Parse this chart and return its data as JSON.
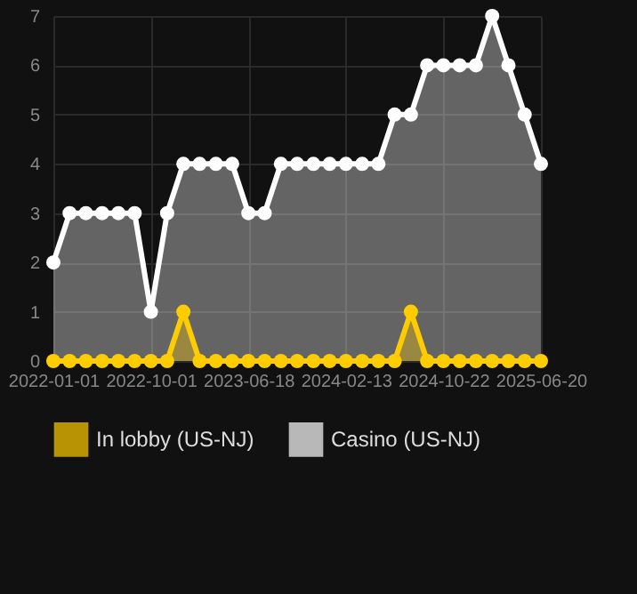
{
  "chart_data": {
    "type": "area",
    "categories": [
      "2022-01-01",
      null,
      null,
      null,
      null,
      null,
      "2022-10-01",
      null,
      null,
      null,
      null,
      null,
      "2023-06-18",
      null,
      null,
      null,
      null,
      null,
      "2024-02-13",
      null,
      null,
      null,
      null,
      null,
      "2024-10-22",
      null,
      null,
      null,
      null,
      null,
      "2025-06-20"
    ],
    "series": [
      {
        "name": "In lobby (US-NJ)",
        "color": "#ffcc00",
        "values": [
          0,
          0,
          0,
          0,
          0,
          0,
          0,
          0,
          1,
          0,
          0,
          0,
          0,
          0,
          0,
          0,
          0,
          0,
          0,
          0,
          0,
          0,
          1,
          0,
          0,
          0,
          0,
          0,
          0,
          0,
          0
        ]
      },
      {
        "name": "Casino (US-NJ)",
        "color": "#ffffff",
        "values": [
          2,
          3,
          3,
          3,
          3,
          3,
          1,
          3,
          4,
          4,
          4,
          4,
          3,
          3,
          4,
          4,
          4,
          4,
          4,
          4,
          4,
          5,
          5,
          6,
          6,
          6,
          6,
          7,
          6,
          5,
          4
        ]
      }
    ],
    "ylim": [
      0,
      7
    ],
    "yticks": [
      0,
      1,
      2,
      3,
      4,
      5,
      6,
      7
    ],
    "grid": true,
    "legend": "bottom",
    "marker": "circle"
  }
}
